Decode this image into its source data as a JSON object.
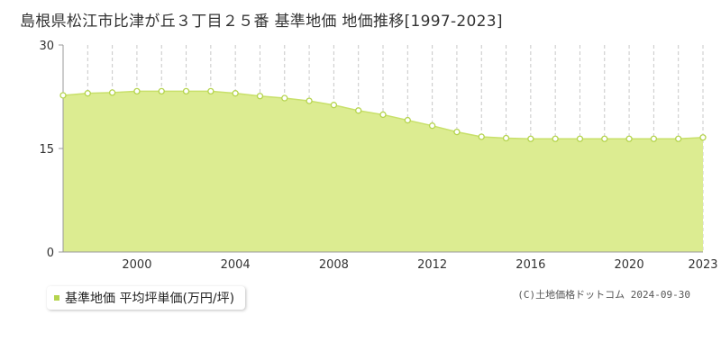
{
  "title": "島根県松江市比津が丘３丁目２５番 基準地価 地価推移[1997-2023]",
  "legend": {
    "label": "基準地価 平均坪単価(万円/坪)"
  },
  "credit": "(C)土地価格ドットコム 2024-09-30",
  "colors": {
    "fill": "#dcec91",
    "line": "#c8e06a",
    "marker_stroke": "#b5d44e",
    "marker_fill": "#ffffff",
    "legend_marker": "#b5d44e",
    "gridline": "#c8c8c8",
    "axis_text": "#333333"
  },
  "chart_data": {
    "type": "area",
    "title": "島根県松江市比津が丘３丁目２５番 基準地価 地価推移[1997-2023]",
    "xlabel": "",
    "ylabel": "",
    "x": [
      1997,
      1998,
      1999,
      2000,
      2001,
      2002,
      2003,
      2004,
      2005,
      2006,
      2007,
      2008,
      2009,
      2010,
      2011,
      2012,
      2013,
      2014,
      2015,
      2016,
      2017,
      2018,
      2019,
      2020,
      2021,
      2022,
      2023
    ],
    "series": [
      {
        "name": "基準地価 平均坪単価(万円/坪)",
        "values": [
          22.7,
          23.0,
          23.1,
          23.3,
          23.3,
          23.3,
          23.3,
          23.0,
          22.6,
          22.3,
          21.9,
          21.3,
          20.5,
          19.9,
          19.1,
          18.3,
          17.4,
          16.7,
          16.5,
          16.4,
          16.4,
          16.4,
          16.4,
          16.4,
          16.4,
          16.4,
          16.6
        ]
      }
    ],
    "ylim": [
      0,
      30
    ],
    "yticks": [
      0,
      15,
      30
    ],
    "xtick_labels": [
      "2000",
      "2004",
      "2008",
      "2012",
      "2016",
      "2020",
      "2023"
    ],
    "grid": {
      "vertical": true,
      "horizontal_dashed_at": [
        15
      ]
    },
    "legend_position": "bottom-left"
  }
}
